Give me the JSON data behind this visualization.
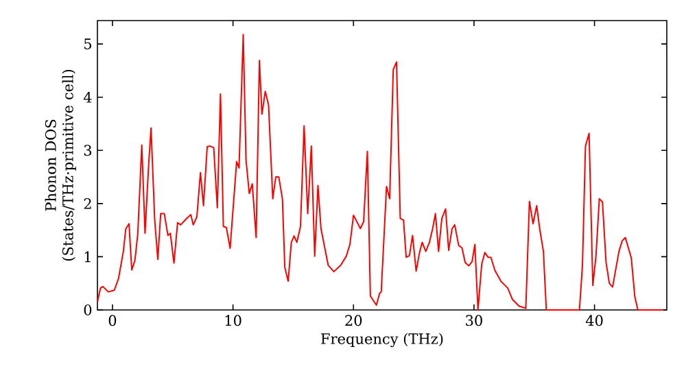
{
  "chart_data": {
    "type": "line",
    "xlabel": "Frequency (THz)",
    "ylabel": "Phonon DOS (States/THz·primitive cell)",
    "xlim": [
      -1.25,
      46
    ],
    "ylim": [
      0,
      5.44
    ],
    "xticks": [
      0,
      10,
      20,
      30,
      40
    ],
    "yticks": [
      0,
      1,
      2,
      3,
      4,
      5
    ],
    "grid": false,
    "marker": "none",
    "line_style": "solid",
    "series": [
      {
        "color": "#ff0000",
        "x": [
          -1.25,
          -1.0,
          -0.8,
          -0.35,
          0.15,
          0.5,
          0.9,
          1.1,
          1.37,
          1.6,
          1.86,
          2.1,
          2.43,
          2.7,
          3.0,
          3.2,
          3.5,
          3.76,
          4.0,
          4.3,
          4.6,
          4.8,
          5.1,
          5.4,
          5.66,
          6.2,
          6.5,
          6.7,
          7.0,
          7.3,
          7.55,
          7.86,
          8.1,
          8.4,
          8.7,
          8.96,
          9.2,
          9.45,
          9.76,
          10.3,
          10.5,
          10.85,
          11.08,
          11.35,
          11.6,
          11.92,
          12.19,
          12.4,
          12.68,
          12.95,
          13.3,
          13.55,
          13.8,
          14.1,
          14.3,
          14.58,
          14.84,
          15.07,
          15.3,
          15.6,
          15.9,
          16.2,
          16.5,
          16.78,
          17.05,
          17.3,
          17.9,
          18.37,
          18.94,
          19.4,
          19.7,
          20.0,
          20.57,
          20.84,
          21.15,
          21.4,
          21.9,
          22.16,
          22.3,
          22.74,
          23.0,
          23.3,
          23.57,
          23.88,
          24.15,
          24.37,
          24.64,
          24.9,
          25.2,
          25.48,
          25.7,
          26.0,
          26.3,
          26.57,
          26.8,
          27.06,
          27.33,
          27.64,
          27.9,
          28.17,
          28.4,
          28.73,
          29.0,
          29.27,
          29.57,
          29.84,
          30.07,
          30.33,
          30.64,
          30.9,
          31.17,
          31.4,
          31.74,
          32.23,
          32.8,
          33.18,
          33.75,
          34.3,
          34.6,
          34.9,
          35.2,
          35.45,
          35.76,
          36.0,
          38.75,
          39.0,
          39.25,
          39.55,
          39.86,
          40.12,
          40.4,
          40.66,
          40.96,
          41.23,
          41.5,
          42.03,
          42.3,
          42.56,
          43.05,
          43.35,
          43.6,
          45.7
        ],
        "values": [
          0.15,
          0.41,
          0.44,
          0.34,
          0.37,
          0.59,
          1.1,
          1.52,
          1.62,
          0.75,
          0.93,
          1.44,
          3.1,
          1.44,
          2.73,
          3.42,
          1.7,
          0.95,
          1.81,
          1.81,
          1.4,
          1.44,
          0.88,
          1.64,
          1.6,
          1.73,
          1.79,
          1.6,
          1.75,
          2.58,
          1.96,
          3.07,
          3.08,
          3.05,
          1.92,
          4.06,
          1.57,
          1.55,
          1.16,
          2.79,
          2.67,
          5.18,
          2.82,
          2.19,
          2.37,
          1.36,
          4.69,
          3.68,
          4.11,
          3.85,
          2.09,
          2.5,
          2.5,
          2.09,
          0.8,
          0.54,
          1.27,
          1.39,
          1.27,
          1.57,
          3.46,
          1.81,
          3.08,
          1.01,
          2.34,
          1.53,
          0.84,
          0.72,
          0.84,
          1.01,
          1.23,
          1.78,
          1.53,
          1.66,
          2.98,
          0.26,
          0.09,
          0.31,
          0.34,
          2.32,
          2.09,
          4.52,
          4.66,
          1.72,
          1.69,
          0.99,
          1.02,
          1.4,
          0.73,
          1.08,
          1.27,
          1.1,
          1.27,
          1.53,
          1.81,
          1.1,
          1.72,
          1.9,
          1.12,
          1.52,
          1.6,
          1.21,
          1.17,
          0.89,
          0.83,
          0.91,
          1.23,
          0,
          0.86,
          1.08,
          0.99,
          0.99,
          0.74,
          0.54,
          0.41,
          0.2,
          0.07,
          0.03,
          2.04,
          1.62,
          1.96,
          1.53,
          1.1,
          0,
          0,
          0.84,
          3.08,
          3.32,
          0.46,
          1.01,
          2.09,
          2.03,
          0.89,
          0.5,
          0.43,
          1.1,
          1.3,
          1.36,
          0.98,
          0.24,
          0,
          0
        ]
      }
    ]
  }
}
